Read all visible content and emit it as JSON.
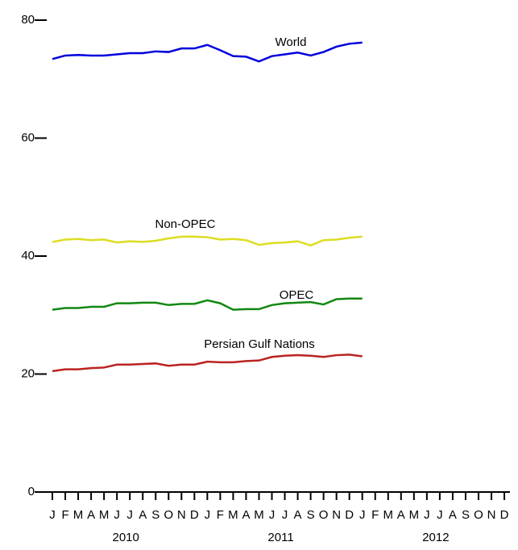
{
  "chart_data": {
    "type": "line",
    "x": [
      "2010-01",
      "2010-02",
      "2010-03",
      "2010-04",
      "2010-05",
      "2010-06",
      "2010-07",
      "2010-08",
      "2010-09",
      "2010-10",
      "2010-11",
      "2010-12",
      "2011-01",
      "2011-02",
      "2011-03",
      "2011-04",
      "2011-05",
      "2011-06",
      "2011-07",
      "2011-08",
      "2011-09",
      "2011-10",
      "2011-11",
      "2011-12",
      "2012-01"
    ],
    "series": [
      {
        "name": "World",
        "color": "#0000dd",
        "values": [
          73.4,
          74.0,
          74.1,
          74.0,
          74.0,
          74.2,
          74.4,
          74.4,
          74.7,
          74.6,
          75.2,
          75.2,
          75.8,
          74.9,
          73.9,
          73.8,
          73.0,
          73.9,
          74.2,
          74.5,
          74.0,
          74.6,
          75.5,
          76.0,
          76.2
        ]
      },
      {
        "name": "Non-OPEC",
        "color": "#dddd22",
        "values": [
          42.4,
          42.8,
          42.9,
          42.7,
          42.8,
          42.3,
          42.5,
          42.4,
          42.6,
          43.0,
          43.3,
          43.3,
          43.2,
          42.8,
          42.9,
          42.7,
          41.9,
          42.2,
          42.3,
          42.5,
          41.8,
          42.7,
          42.8,
          43.1,
          43.3
        ]
      },
      {
        "name": "OPEC",
        "color": "#118811",
        "values": [
          30.9,
          31.2,
          31.2,
          31.4,
          31.4,
          32.0,
          32.0,
          32.1,
          32.1,
          31.7,
          31.9,
          31.9,
          32.5,
          32.0,
          30.9,
          31.0,
          31.0,
          31.7,
          32.0,
          32.1,
          32.2,
          31.8,
          32.7,
          32.8,
          32.8
        ]
      },
      {
        "name": "Persian Gulf Nations",
        "color": "#bb2222",
        "values": [
          20.5,
          20.8,
          20.8,
          21.0,
          21.1,
          21.6,
          21.6,
          21.7,
          21.8,
          21.4,
          21.6,
          21.6,
          22.1,
          22.0,
          22.0,
          22.2,
          22.3,
          22.9,
          23.1,
          23.2,
          23.1,
          22.9,
          23.2,
          23.3,
          23.0
        ]
      }
    ],
    "ylim": [
      0,
      80
    ],
    "yticks": [
      0,
      20,
      40,
      60,
      80
    ],
    "xticks": [
      {
        "value": "2010-01",
        "label": "J"
      },
      {
        "value": "2010-02",
        "label": "F"
      },
      {
        "value": "2010-03",
        "label": "M"
      },
      {
        "value": "2010-04",
        "label": "A"
      },
      {
        "value": "2010-05",
        "label": "M"
      },
      {
        "value": "2010-06",
        "label": "J"
      },
      {
        "value": "2010-07",
        "label": "J"
      },
      {
        "value": "2010-08",
        "label": "A"
      },
      {
        "value": "2010-09",
        "label": "S"
      },
      {
        "value": "2010-10",
        "label": "O"
      },
      {
        "value": "2010-11",
        "label": "N"
      },
      {
        "value": "2010-12",
        "label": "D"
      },
      {
        "value": "2011-01",
        "label": "J"
      },
      {
        "value": "2011-02",
        "label": "F"
      },
      {
        "value": "2011-03",
        "label": "M"
      },
      {
        "value": "2011-04",
        "label": "A"
      },
      {
        "value": "2011-05",
        "label": "M"
      },
      {
        "value": "2011-06",
        "label": "J"
      },
      {
        "value": "2011-07",
        "label": "J"
      },
      {
        "value": "2011-08",
        "label": "A"
      },
      {
        "value": "2011-09",
        "label": "S"
      },
      {
        "value": "2011-10",
        "label": "O"
      },
      {
        "value": "2011-11",
        "label": "N"
      },
      {
        "value": "2011-12",
        "label": "D"
      },
      {
        "value": "2012-01",
        "label": "J"
      },
      {
        "value": "2012-02",
        "label": "F"
      },
      {
        "value": "2012-03",
        "label": "M"
      },
      {
        "value": "2012-04",
        "label": "A"
      },
      {
        "value": "2012-05",
        "label": "M"
      },
      {
        "value": "2012-06",
        "label": "J"
      },
      {
        "value": "2012-07",
        "label": "J"
      },
      {
        "value": "2012-08",
        "label": "A"
      },
      {
        "value": "2012-09",
        "label": "S"
      },
      {
        "value": "2012-10",
        "label": "O"
      },
      {
        "value": "2012-11",
        "label": "N"
      },
      {
        "value": "2012-12",
        "label": "D"
      }
    ],
    "years": [
      "2010",
      "2011",
      "2012"
    ]
  }
}
